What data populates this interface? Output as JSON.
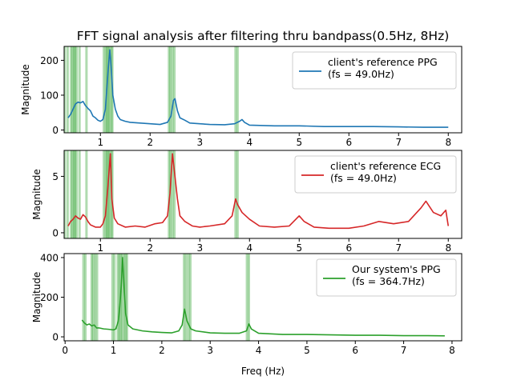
{
  "title": "FFT signal analysis after filtering thru bandpass(0.5Hz, 8Hz)",
  "xlabel": "Freq (Hz)",
  "shading_color": "#2ca02c",
  "chart_data": [
    {
      "type": "line",
      "ylabel": "Magnitude",
      "xlim": [
        0.27,
        8.27
      ],
      "ylim": [
        -8,
        240
      ],
      "xticks": [
        1,
        2,
        3,
        4,
        5,
        6,
        7,
        8
      ],
      "yticks": [
        0,
        100,
        200
      ],
      "legend": [
        "client's reference PPG",
        "(fs = 49.0Hz)"
      ],
      "legend_position": "top-right",
      "series": [
        {
          "name": "client's reference PPG",
          "color": "#1f77b4",
          "points": [
            [
              0.35,
              35
            ],
            [
              0.4,
              45
            ],
            [
              0.45,
              60
            ],
            [
              0.5,
              75
            ],
            [
              0.55,
              80
            ],
            [
              0.6,
              78
            ],
            [
              0.65,
              82
            ],
            [
              0.7,
              70
            ],
            [
              0.75,
              62
            ],
            [
              0.8,
              55
            ],
            [
              0.85,
              40
            ],
            [
              0.9,
              35
            ],
            [
              0.95,
              28
            ],
            [
              1.0,
              25
            ],
            [
              1.05,
              30
            ],
            [
              1.1,
              60
            ],
            [
              1.13,
              120
            ],
            [
              1.16,
              180
            ],
            [
              1.19,
              230
            ],
            [
              1.22,
              170
            ],
            [
              1.25,
              100
            ],
            [
              1.3,
              60
            ],
            [
              1.35,
              40
            ],
            [
              1.4,
              30
            ],
            [
              1.5,
              25
            ],
            [
              1.6,
              22
            ],
            [
              1.8,
              20
            ],
            [
              2.0,
              18
            ],
            [
              2.2,
              16
            ],
            [
              2.35,
              22
            ],
            [
              2.42,
              40
            ],
            [
              2.47,
              85
            ],
            [
              2.5,
              90
            ],
            [
              2.55,
              55
            ],
            [
              2.6,
              35
            ],
            [
              2.7,
              28
            ],
            [
              2.8,
              20
            ],
            [
              3.0,
              18
            ],
            [
              3.2,
              16
            ],
            [
              3.5,
              15
            ],
            [
              3.7,
              18
            ],
            [
              3.8,
              25
            ],
            [
              3.85,
              30
            ],
            [
              3.9,
              22
            ],
            [
              4.0,
              14
            ],
            [
              4.5,
              12
            ],
            [
              5.0,
              12
            ],
            [
              5.5,
              10
            ],
            [
              6.0,
              10
            ],
            [
              6.5,
              10
            ],
            [
              7.0,
              9
            ],
            [
              7.5,
              8
            ],
            [
              8.0,
              8
            ]
          ]
        }
      ],
      "shaded_x": [
        0.28,
        0.34,
        0.41,
        0.44,
        0.47,
        0.49,
        0.52,
        0.58,
        0.72,
        1.07,
        1.11,
        1.13,
        1.16,
        1.18,
        1.22,
        1.24,
        2.38,
        2.41,
        2.45,
        2.49,
        3.72,
        3.76
      ]
    },
    {
      "type": "line",
      "ylabel": "Magnitude",
      "xlim": [
        0.27,
        8.27
      ],
      "ylim": [
        -0.5,
        7.3
      ],
      "xticks": [
        1,
        2,
        3,
        4,
        5,
        6,
        7,
        8
      ],
      "yticks": [
        0,
        5
      ],
      "legend": [
        "client's reference ECG",
        "(fs = 49.0Hz)"
      ],
      "legend_position": "top-right",
      "series": [
        {
          "name": "client's reference ECG",
          "color": "#d62728",
          "points": [
            [
              0.35,
              0.6
            ],
            [
              0.4,
              1.0
            ],
            [
              0.45,
              1.2
            ],
            [
              0.5,
              1.5
            ],
            [
              0.55,
              1.3
            ],
            [
              0.6,
              1.2
            ],
            [
              0.65,
              1.6
            ],
            [
              0.7,
              1.4
            ],
            [
              0.75,
              1.0
            ],
            [
              0.8,
              0.7
            ],
            [
              0.9,
              0.5
            ],
            [
              1.0,
              0.5
            ],
            [
              1.05,
              0.8
            ],
            [
              1.1,
              1.5
            ],
            [
              1.15,
              4.0
            ],
            [
              1.2,
              7.0
            ],
            [
              1.23,
              3.0
            ],
            [
              1.28,
              1.3
            ],
            [
              1.35,
              0.8
            ],
            [
              1.5,
              0.5
            ],
            [
              1.7,
              0.6
            ],
            [
              1.9,
              0.5
            ],
            [
              2.1,
              0.8
            ],
            [
              2.25,
              0.9
            ],
            [
              2.35,
              1.5
            ],
            [
              2.4,
              3.5
            ],
            [
              2.45,
              7.0
            ],
            [
              2.5,
              5.0
            ],
            [
              2.55,
              3.0
            ],
            [
              2.6,
              1.5
            ],
            [
              2.7,
              1.0
            ],
            [
              2.85,
              0.6
            ],
            [
              3.0,
              0.5
            ],
            [
              3.2,
              0.6
            ],
            [
              3.5,
              0.8
            ],
            [
              3.65,
              1.5
            ],
            [
              3.72,
              3.0
            ],
            [
              3.76,
              2.5
            ],
            [
              3.85,
              1.8
            ],
            [
              4.0,
              1.2
            ],
            [
              4.2,
              0.6
            ],
            [
              4.5,
              0.5
            ],
            [
              4.8,
              0.6
            ],
            [
              5.0,
              1.5
            ],
            [
              5.1,
              1.0
            ],
            [
              5.3,
              0.5
            ],
            [
              5.6,
              0.4
            ],
            [
              6.0,
              0.4
            ],
            [
              6.3,
              0.6
            ],
            [
              6.6,
              1.0
            ],
            [
              6.9,
              0.8
            ],
            [
              7.2,
              1.0
            ],
            [
              7.45,
              2.2
            ],
            [
              7.55,
              2.8
            ],
            [
              7.7,
              1.8
            ],
            [
              7.85,
              1.5
            ],
            [
              7.95,
              2.0
            ],
            [
              8.0,
              0.6
            ]
          ]
        }
      ],
      "shaded_x": [
        0.28,
        0.34,
        0.41,
        0.44,
        0.47,
        0.49,
        0.52,
        0.58,
        0.72,
        1.07,
        1.11,
        1.13,
        1.16,
        1.18,
        1.22,
        1.24,
        2.38,
        2.41,
        2.45,
        2.49,
        3.72,
        3.76
      ]
    },
    {
      "type": "line",
      "ylabel": "Magnitude",
      "xlim": [
        -0.02,
        8.2
      ],
      "ylim": [
        -20,
        420
      ],
      "xticks": [
        0,
        1,
        2,
        3,
        4,
        5,
        6,
        7,
        8
      ],
      "yticks": [
        0,
        200,
        400
      ],
      "legend": [
        "Our system's PPG",
        "(fs = 364.7Hz)"
      ],
      "legend_position": "top-right",
      "series": [
        {
          "name": "Our system's PPG",
          "color": "#2ca02c",
          "points": [
            [
              0.35,
              85
            ],
            [
              0.4,
              70
            ],
            [
              0.45,
              60
            ],
            [
              0.5,
              65
            ],
            [
              0.55,
              55
            ],
            [
              0.6,
              60
            ],
            [
              0.65,
              45
            ],
            [
              0.7,
              45
            ],
            [
              0.8,
              40
            ],
            [
              0.9,
              38
            ],
            [
              1.0,
              35
            ],
            [
              1.05,
              40
            ],
            [
              1.1,
              80
            ],
            [
              1.13,
              150
            ],
            [
              1.16,
              250
            ],
            [
              1.19,
              400
            ],
            [
              1.22,
              250
            ],
            [
              1.25,
              120
            ],
            [
              1.3,
              60
            ],
            [
              1.4,
              40
            ],
            [
              1.6,
              30
            ],
            [
              1.8,
              25
            ],
            [
              2.0,
              22
            ],
            [
              2.2,
              20
            ],
            [
              2.35,
              30
            ],
            [
              2.42,
              60
            ],
            [
              2.47,
              140
            ],
            [
              2.52,
              80
            ],
            [
              2.6,
              40
            ],
            [
              2.7,
              30
            ],
            [
              3.0,
              20
            ],
            [
              3.3,
              18
            ],
            [
              3.6,
              18
            ],
            [
              3.75,
              30
            ],
            [
              3.8,
              65
            ],
            [
              3.85,
              40
            ],
            [
              4.0,
              18
            ],
            [
              4.5,
              12
            ],
            [
              5.0,
              12
            ],
            [
              5.5,
              10
            ],
            [
              6.0,
              8
            ],
            [
              6.5,
              8
            ],
            [
              7.0,
              6
            ],
            [
              7.5,
              6
            ],
            [
              7.85,
              5
            ]
          ]
        }
      ],
      "shaded_x": [
        0.38,
        0.42,
        0.55,
        0.58,
        0.62,
        0.66,
        0.98,
        1.02,
        1.09,
        1.12,
        1.15,
        1.18,
        1.22,
        1.25,
        1.28,
        2.46,
        2.5,
        2.55,
        2.59,
        3.76,
        3.8
      ]
    }
  ]
}
